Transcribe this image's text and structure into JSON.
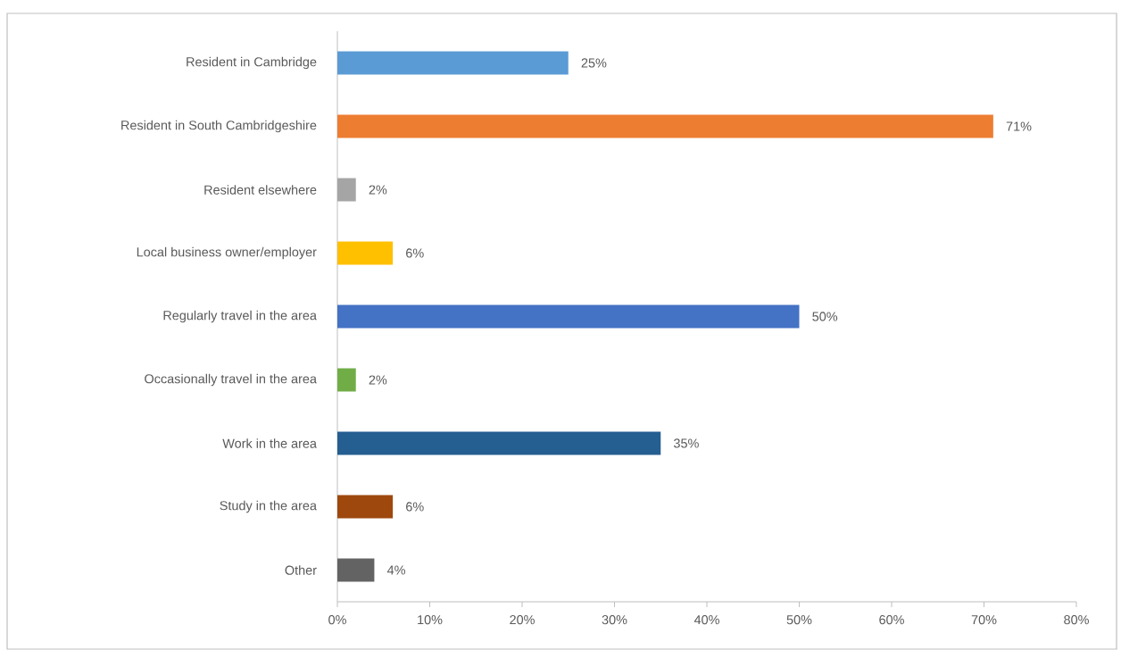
{
  "chart_data": {
    "type": "bar",
    "orientation": "horizontal",
    "categories": [
      "Resident in Cambridge",
      "Resident in South Cambridgeshire",
      "Resident elsewhere",
      "Local business owner/employer",
      "Regularly travel in the area",
      "Occasionally travel in the area",
      "Work in the area",
      "Study in the area",
      "Other"
    ],
    "values": [
      25,
      71,
      2,
      6,
      50,
      2,
      35,
      6,
      4
    ],
    "colors": [
      "#5b9bd5",
      "#ed7d31",
      "#a5a5a5",
      "#ffc000",
      "#4472c4",
      "#70ad47",
      "#255e91",
      "#9e480e",
      "#636363"
    ],
    "value_labels": [
      "25%",
      "71%",
      "2%",
      "6%",
      "50%",
      "2%",
      "35%",
      "6%",
      "4%"
    ],
    "xlim": [
      0,
      80
    ],
    "xticks": [
      {
        "value": 0,
        "label": "0%"
      },
      {
        "value": 10,
        "label": "10%"
      },
      {
        "value": 20,
        "label": "20%"
      },
      {
        "value": 30,
        "label": "30%"
      },
      {
        "value": 40,
        "label": "40%"
      },
      {
        "value": 50,
        "label": "50%"
      },
      {
        "value": 60,
        "label": "60%"
      },
      {
        "value": 70,
        "label": "70%"
      },
      {
        "value": 80,
        "label": "80%"
      }
    ]
  }
}
